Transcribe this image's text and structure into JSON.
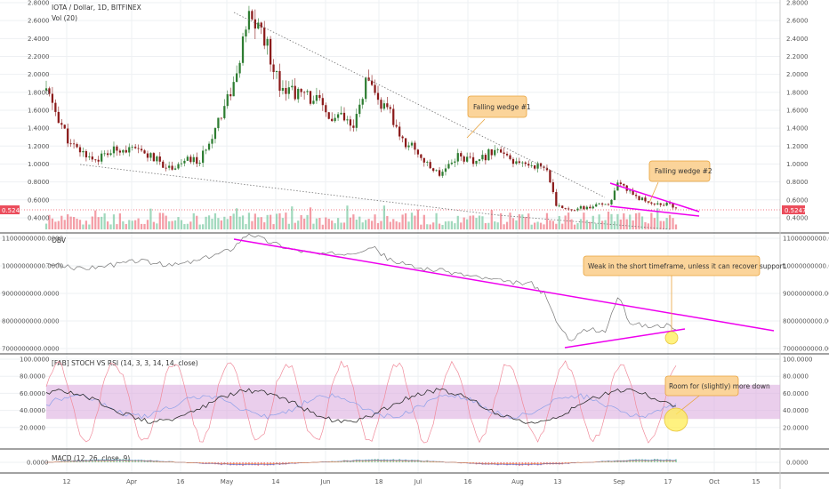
{
  "chart_data": {
    "type": "candlestick-multi-panel",
    "colors": {
      "up": "#53b987",
      "down": "#eb4d5c",
      "up_dark": "#2e7d32",
      "down_dark": "#8b1a1a",
      "annotation": "#ee00ee",
      "note_fill": "#fbd49a",
      "note_border": "#e8a33c",
      "highlight": "#ffee55",
      "band": "#dcaee0",
      "grid": "#eef0f3"
    },
    "x_labels": [
      "12",
      "Apr",
      "16",
      "May",
      "14",
      "Jun",
      "18",
      "Jul",
      "16",
      "Aug",
      "13",
      "Sep",
      "17",
      "Oct",
      "15"
    ],
    "price_panel": {
      "legend_title": "IOTA / Dollar, 1D, BITFINEX",
      "legend_vol": "Vol (20)",
      "ticks": [
        "2.8000",
        "2.6000",
        "2.4000",
        "2.2000",
        "2.0000",
        "1.8000",
        "1.6000",
        "1.4000",
        "1.2000",
        "1.0000",
        "0.8000",
        "0.6000",
        "0.4000"
      ],
      "ylim": [
        0.35,
        2.8
      ],
      "last_price": "0.5247",
      "price_points": [
        [
          0,
          1.82
        ],
        [
          8,
          1.2
        ],
        [
          16,
          1.05
        ],
        [
          24,
          1.18
        ],
        [
          32,
          1.12
        ],
        [
          40,
          0.96
        ],
        [
          47,
          1.05
        ],
        [
          50,
          1.02
        ],
        [
          56,
          1.5
        ],
        [
          62,
          1.98
        ],
        [
          65,
          2.5
        ],
        [
          66,
          2.62
        ],
        [
          70,
          2.5
        ],
        [
          76,
          1.9
        ],
        [
          82,
          1.78
        ],
        [
          88,
          1.72
        ],
        [
          92,
          1.5
        ],
        [
          96,
          1.52
        ],
        [
          100,
          1.38
        ],
        [
          104,
          1.92
        ],
        [
          108,
          1.7
        ],
        [
          112,
          1.55
        ],
        [
          116,
          1.25
        ],
        [
          120,
          1.18
        ],
        [
          124,
          0.98
        ],
        [
          128,
          0.9
        ],
        [
          134,
          1.1
        ],
        [
          140,
          1.0
        ],
        [
          146,
          1.18
        ],
        [
          152,
          1.0
        ],
        [
          158,
          1.0
        ],
        [
          163,
          0.95
        ],
        [
          166,
          0.52
        ],
        [
          172,
          0.5
        ],
        [
          178,
          0.52
        ],
        [
          184,
          0.58
        ],
        [
          186,
          0.77
        ],
        [
          190,
          0.7
        ],
        [
          194,
          0.6
        ],
        [
          198,
          0.56
        ],
        [
          202,
          0.55
        ],
        [
          205,
          0.52
        ]
      ],
      "falling_wedge_1_label": "Falling wedge #1",
      "falling_wedge_2_label": "Falling wedge #2"
    },
    "obv_panel": {
      "legend_title": "OBV",
      "ticks": [
        "11000000000.0000",
        "10000000000.0000",
        "9000000000.0000",
        "8000000000.0000",
        "7000000000.0000"
      ],
      "ylim": [
        7000000000,
        11000000000
      ],
      "points": [
        [
          0,
          10.1
        ],
        [
          10,
          9.9
        ],
        [
          20,
          10.0
        ],
        [
          30,
          10.2
        ],
        [
          40,
          10.0
        ],
        [
          50,
          10.2
        ],
        [
          60,
          10.6
        ],
        [
          66,
          11.2
        ],
        [
          72,
          10.9
        ],
        [
          80,
          10.6
        ],
        [
          90,
          10.4
        ],
        [
          100,
          10.5
        ],
        [
          106,
          10.7
        ],
        [
          112,
          10.2
        ],
        [
          120,
          9.95
        ],
        [
          130,
          9.8
        ],
        [
          140,
          9.6
        ],
        [
          150,
          9.4
        ],
        [
          158,
          9.35
        ],
        [
          162,
          9.0
        ],
        [
          166,
          8.0
        ],
        [
          170,
          7.3
        ],
        [
          176,
          7.7
        ],
        [
          182,
          7.6
        ],
        [
          186,
          8.9
        ],
        [
          190,
          7.95
        ],
        [
          196,
          7.8
        ],
        [
          202,
          7.85
        ],
        [
          205,
          7.6
        ]
      ],
      "note": "Weak in the short timeframe, unless it can recover support."
    },
    "stoch_rsi_panel": {
      "legend_title": "[FAB] STOCH VS RSI (14, 3, 3, 14, 14, close)",
      "ticks": [
        "100.0000",
        "80.0000",
        "60.0000",
        "40.0000",
        "20.0000"
      ],
      "ylim": [
        0,
        100
      ],
      "band": [
        30,
        70
      ],
      "note": "Room for (slightly) more down"
    },
    "macd_panel": {
      "legend_title": "MACD (12, 26, close, 9)",
      "ticks": [
        "0.0000"
      ],
      "ylim": [
        -1,
        1
      ]
    }
  }
}
